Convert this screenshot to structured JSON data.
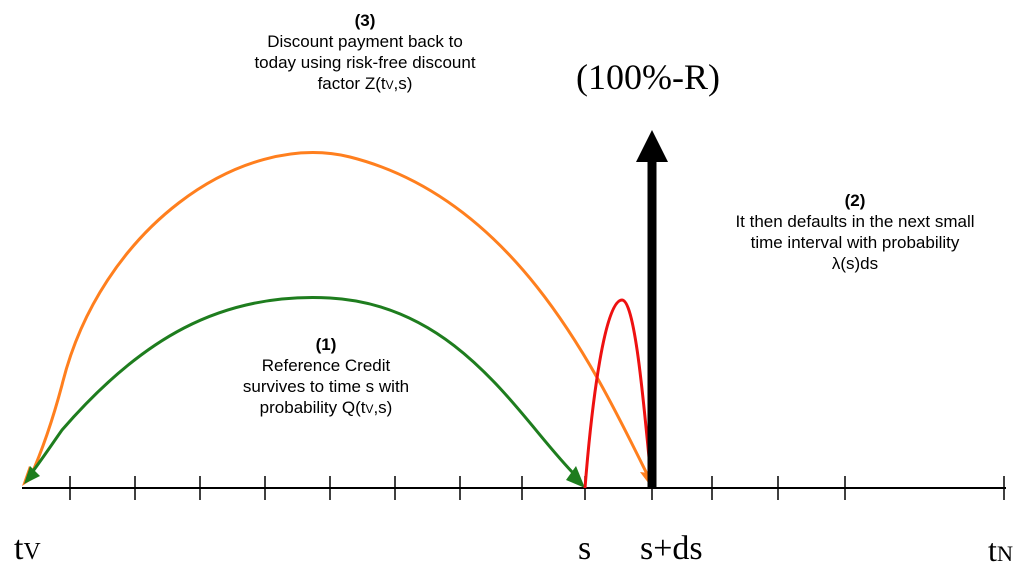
{
  "step3": {
    "number": "(3)",
    "line1": "Discount payment back to",
    "line2": "today using risk-free discount",
    "line3_prefix": "factor Z(t",
    "line3_sub": "V",
    "line3_suffix": ",s)"
  },
  "step1": {
    "number": "(1)",
    "line1": "Reference Credit",
    "line2": "survives to time s with",
    "line3_prefix": "probability Q(t",
    "line3_sub": "V",
    "line3_suffix": ",s)"
  },
  "step2": {
    "number": "(2)",
    "line1": "It then defaults in the next small",
    "line2": "time interval with probability",
    "line3": "λ(s)ds"
  },
  "payoff": "(100%-R)",
  "axis": {
    "start_main": "t",
    "start_sub": "V",
    "s": "s",
    "s_ds": "s+ds",
    "end_main": "t",
    "end_sub": "N"
  },
  "colors": {
    "orange_arc": "#ff7f1e",
    "green_arc": "#1e7d1e",
    "red_spike": "#ee1111",
    "axis": "#000000"
  }
}
